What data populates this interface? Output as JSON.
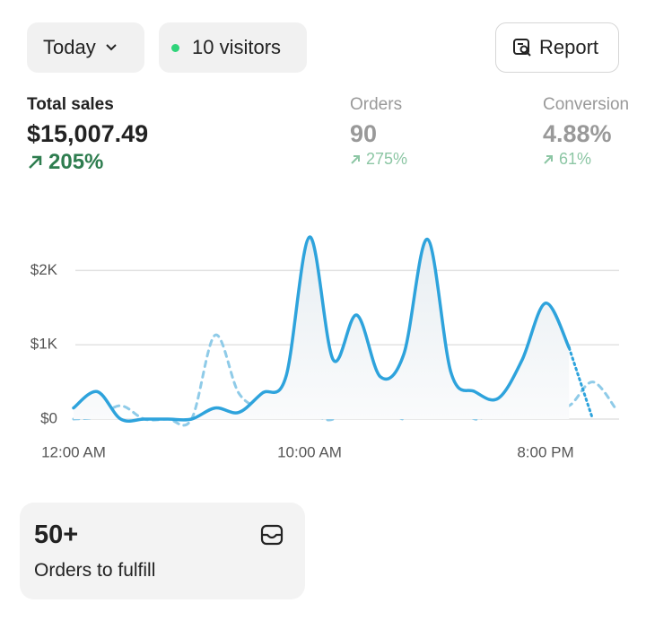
{
  "header": {
    "period": "Today",
    "visitors": "10 visitors",
    "report": "Report"
  },
  "metrics": [
    {
      "label": "Total sales",
      "value": "$15,007.49",
      "change": "205%"
    },
    {
      "label": "Orders",
      "value": "90",
      "change": "275%"
    },
    {
      "label": "Conversion",
      "value": "4.88%",
      "change": "61%"
    }
  ],
  "chart_data": {
    "type": "line",
    "categories": [
      "12:00 AM",
      null,
      null,
      null,
      null,
      null,
      null,
      null,
      null,
      null,
      "10:00 AM",
      null,
      null,
      null,
      null,
      null,
      null,
      null,
      null,
      null,
      "8:00 PM",
      null,
      null,
      null
    ],
    "series": [
      {
        "color": "#2ea3dc",
        "style": "solid",
        "dotted_tail": true,
        "values": [
          150,
          370,
          0,
          0,
          0,
          0,
          150,
          90,
          350,
          570,
          2450,
          800,
          1400,
          570,
          880,
          2420,
          620,
          370,
          280,
          790,
          1560,
          960,
          0,
          null
        ]
      },
      {
        "color": "#8fcbe8",
        "style": "dashed",
        "values": [
          0,
          30,
          180,
          0,
          0,
          0,
          1130,
          350,
          150,
          150,
          90,
          0,
          380,
          350,
          0,
          450,
          380,
          0,
          190,
          350,
          190,
          180,
          500,
          130
        ]
      }
    ],
    "ylim": [
      0,
      2500
    ],
    "yticks": [
      {
        "value": 0,
        "label": "$0"
      },
      {
        "value": 1000,
        "label": "$1K"
      },
      {
        "value": 2000,
        "label": "$2K"
      }
    ],
    "grid": true
  },
  "card": {
    "value": "50+",
    "label": "Orders to fulfill"
  }
}
